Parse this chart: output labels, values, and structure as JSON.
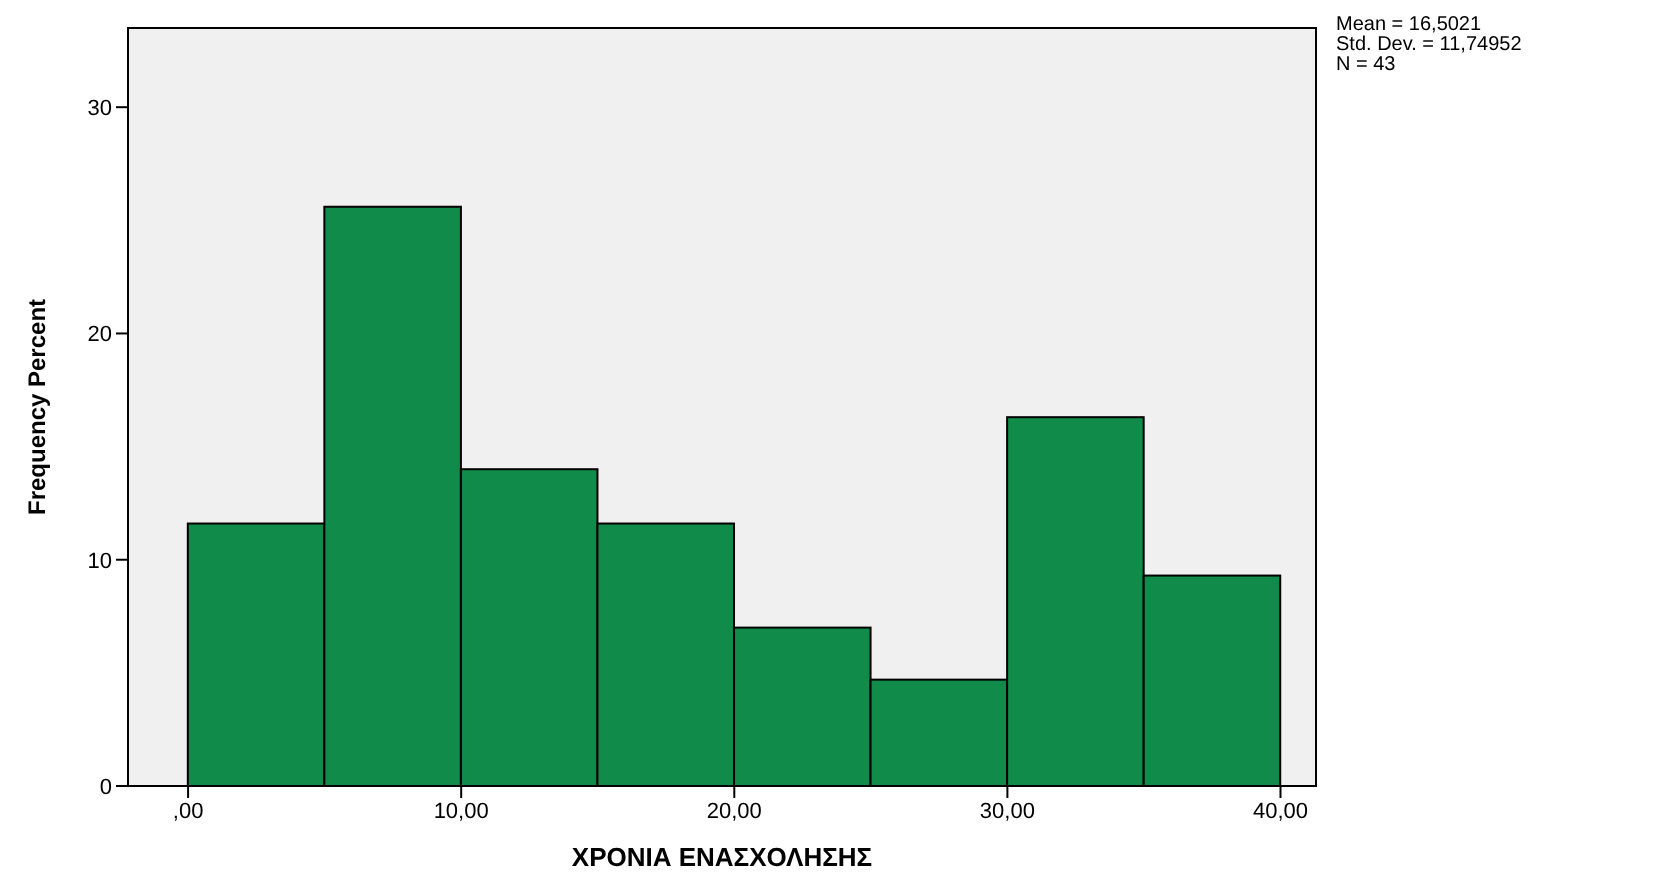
{
  "chart_data": {
    "type": "histogram",
    "xlabel": "ΧΡΟΝΙΑ ΕΝΑΣΧΟΛΗΣΗΣ",
    "ylabel": "Frequency Percent",
    "bins": [
      0,
      5,
      10,
      15,
      20,
      25,
      30,
      35,
      40
    ],
    "values": [
      11.6,
      25.6,
      14.0,
      11.6,
      7.0,
      4.7,
      16.3,
      9.3
    ],
    "color": "#118b49",
    "xlim": [
      -2.2,
      41.3
    ],
    "xticks": [
      {
        "value": 0,
        "label": ",00"
      },
      {
        "value": 10,
        "label": "10,00"
      },
      {
        "value": 20,
        "label": "20,00"
      },
      {
        "value": 30,
        "label": "30,00"
      },
      {
        "value": 40,
        "label": "40,00"
      }
    ],
    "ylim": [
      0,
      33.5
    ],
    "yticks": [
      0,
      10,
      20,
      30
    ],
    "annotations": [
      "Mean = 16,5021",
      "Std. Dev. = 11,74952",
      "N = 43"
    ]
  }
}
